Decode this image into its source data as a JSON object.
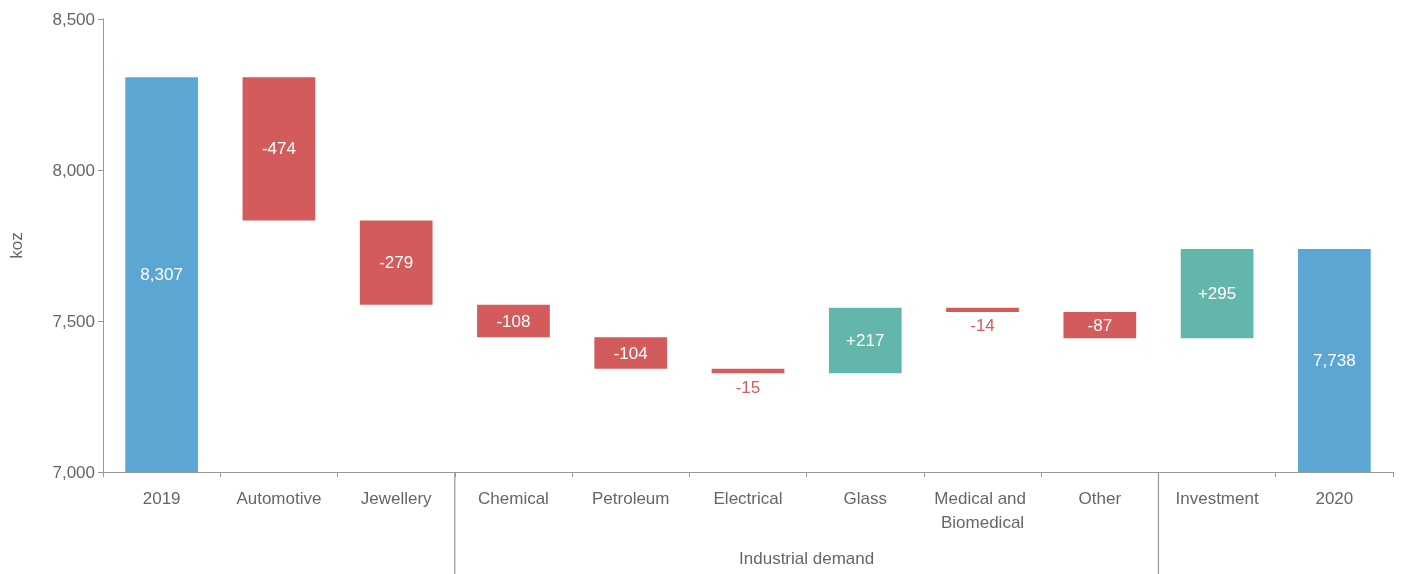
{
  "chart_data": {
    "type": "bar",
    "ylabel": "koz",
    "categories": [
      "2019",
      "Automotive",
      "Jewellery",
      "Chemical",
      "Petroleum",
      "Electrical",
      "Glass",
      "Medical and Biomedical",
      "Other",
      "Investment",
      "2020"
    ],
    "values": [
      8307,
      -474,
      -279,
      -108,
      -104,
      -15,
      217,
      -14,
      -87,
      295,
      7738
    ],
    "base": [
      0,
      8307,
      7833,
      7554,
      7446,
      7342,
      7327,
      7544,
      7530,
      7443,
      0
    ],
    "colors": [
      "#5ca6d3",
      "#d35b5b",
      "#d35b5b",
      "#d35b5b",
      "#d35b5b",
      "#d35b5b",
      "#62b6aa",
      "#d35b5b",
      "#d35b5b",
      "#62b6aa",
      "#5ca6d3"
    ],
    "value_labels": [
      "8,307",
      "-474",
      "-279",
      "-108",
      "-104",
      "-15",
      "+217",
      "-14",
      "-87",
      "+295",
      "7,738"
    ],
    "ylim": [
      7000,
      8500
    ],
    "yticks": [
      {
        "value": 7000,
        "label": "7,000"
      },
      {
        "value": 7500,
        "label": "7,500"
      },
      {
        "value": 8000,
        "label": "8,000"
      },
      {
        "value": 8500,
        "label": "8,500"
      }
    ],
    "grid": false,
    "annotations": [
      "Industrial demand"
    ]
  }
}
